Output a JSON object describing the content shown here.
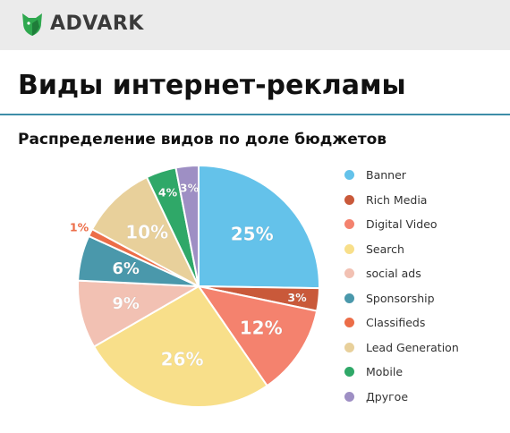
{
  "header": {
    "brand": "ADVARK",
    "logo_icon": "dog-head-logo",
    "logo_color": "#2fa84f"
  },
  "page": {
    "title": "Виды интернет-рекламы",
    "accent_rule_color": "#3e8da8"
  },
  "chart_data": {
    "type": "pie",
    "title": "Распределение видов по доле бюджетов",
    "start_angle_deg": 0,
    "direction": "clockwise",
    "legend_position": "right",
    "slices": [
      {
        "label": "Banner",
        "value": 25,
        "value_label": "25%",
        "color": "#64c2ea"
      },
      {
        "label": "Rich Media",
        "value": 3,
        "value_label": "3%",
        "color": "#c9593a"
      },
      {
        "label": "Digital Video",
        "value": 12,
        "value_label": "12%",
        "color": "#f4826e"
      },
      {
        "label": "Search",
        "value": 26,
        "value_label": "26%",
        "color": "#f8df8a"
      },
      {
        "label": "social ads",
        "value": 9,
        "value_label": "9%",
        "color": "#f2c1b3"
      },
      {
        "label": "Sponsorship",
        "value": 6,
        "value_label": "6%",
        "color": "#4a98ab"
      },
      {
        "label": "Classifieds",
        "value": 1,
        "value_label": "1%",
        "color": "#ec6d48"
      },
      {
        "label": "Lead Generation",
        "value": 10,
        "value_label": "10%",
        "color": "#e8d09b"
      },
      {
        "label": "Mobile",
        "value": 4,
        "value_label": "4%",
        "color": "#2fa868"
      },
      {
        "label": "Другое",
        "value": 3,
        "value_label": "3%",
        "color": "#9e8fc4"
      }
    ]
  }
}
